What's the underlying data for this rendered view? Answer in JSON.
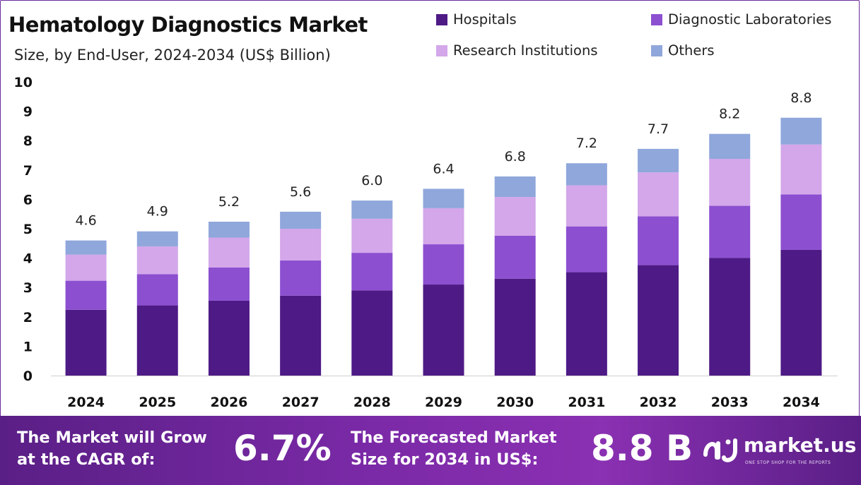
{
  "title": "Hematology Diagnostics Market",
  "subtitle": "Size, by End-User, 2024-2034 (US$ Billion)",
  "legend": [
    {
      "label": "Hospitals",
      "color": "#4e1a86"
    },
    {
      "label": "Diagnostic Laboratories",
      "color": "#8c4fd0"
    },
    {
      "label": "Research Institutions",
      "color": "#d3a7ea"
    },
    {
      "label": "Others",
      "color": "#8fa7db"
    }
  ],
  "footer": {
    "cagr_text_line1": "The Market will Grow",
    "cagr_text_line2": "at the CAGR of:",
    "cagr_value": "6.7%",
    "forecast_text_line1": "The Forecasted Market",
    "forecast_text_line2": "Size for 2034 in US$:",
    "forecast_value": "8.8 B",
    "brand_name": "market.us",
    "brand_tagline": "ONE STOP SHOP FOR THE REPORTS"
  },
  "chart_data": {
    "type": "bar",
    "stacked": true,
    "title": "Hematology Diagnostics Market",
    "subtitle": "Size, by End-User, 2024-2034 (US$ Billion)",
    "categories": [
      "2024",
      "2025",
      "2026",
      "2027",
      "2028",
      "2029",
      "2030",
      "2031",
      "2032",
      "2033",
      "2034"
    ],
    "series": [
      {
        "name": "Hospitals",
        "color": "#4e1a86",
        "values": [
          2.24,
          2.39,
          2.55,
          2.72,
          2.9,
          3.1,
          3.3,
          3.52,
          3.76,
          4.01,
          4.28
        ]
      },
      {
        "name": "Diagnostic Laboratories",
        "color": "#8c4fd0",
        "values": [
          0.99,
          1.06,
          1.13,
          1.2,
          1.28,
          1.37,
          1.46,
          1.56,
          1.66,
          1.77,
          1.89
        ]
      },
      {
        "name": "Research Institutions",
        "color": "#d3a7ea",
        "values": [
          0.89,
          0.95,
          1.02,
          1.08,
          1.16,
          1.23,
          1.32,
          1.4,
          1.5,
          1.6,
          1.7
        ]
      },
      {
        "name": "Others",
        "color": "#8fa7db",
        "values": [
          0.48,
          0.51,
          0.54,
          0.58,
          0.62,
          0.66,
          0.7,
          0.75,
          0.8,
          0.85,
          0.91
        ]
      }
    ],
    "totals": [
      "4.6",
      "4.9",
      "5.2",
      "5.6",
      "6.0",
      "6.4",
      "6.8",
      "7.2",
      "7.7",
      "8.2",
      "8.8"
    ],
    "ylim": [
      0,
      10
    ],
    "yticks": [
      0,
      1,
      2,
      3,
      4,
      5,
      6,
      7,
      8,
      9,
      10
    ],
    "grid": false,
    "legend_position": "top-right"
  }
}
